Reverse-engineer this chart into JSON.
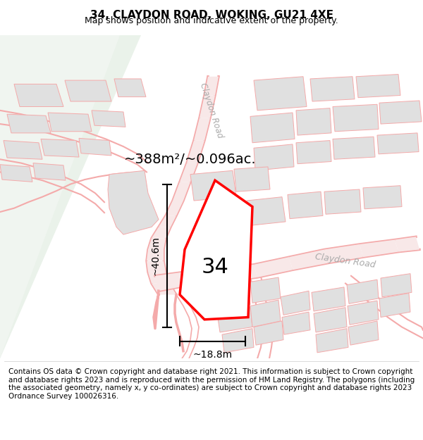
{
  "title": "34, CLAYDON ROAD, WOKING, GU21 4XE",
  "subtitle": "Map shows position and indicative extent of the property.",
  "area_label": "~388m²/~0.096ac.",
  "dim_height": "~40.6m",
  "dim_width": "~18.8m",
  "property_label": "34",
  "road_label_right": "Claydon Road",
  "road_label_top": "Claydon Road",
  "footer": "Contains OS data © Crown copyright and database right 2021. This information is subject to Crown copyright and database rights 2023 and is reproduced with the permission of HM Land Registry. The polygons (including the associated geometry, namely x, y co-ordinates) are subject to Crown copyright and database rights 2023 Ordnance Survey 100026316.",
  "map_bg": "#ffffff",
  "property_fill": "#f0f0f0",
  "property_edge": "#ff0000",
  "building_fill": "#e0e0e0",
  "building_edge": "#f4aaaa",
  "road_color": "#f4aaaa",
  "road_outline": "#e8c8c8",
  "green_color": "#eaf2ea",
  "title_fontsize": 11,
  "subtitle_fontsize": 9,
  "footer_fontsize": 7.5
}
